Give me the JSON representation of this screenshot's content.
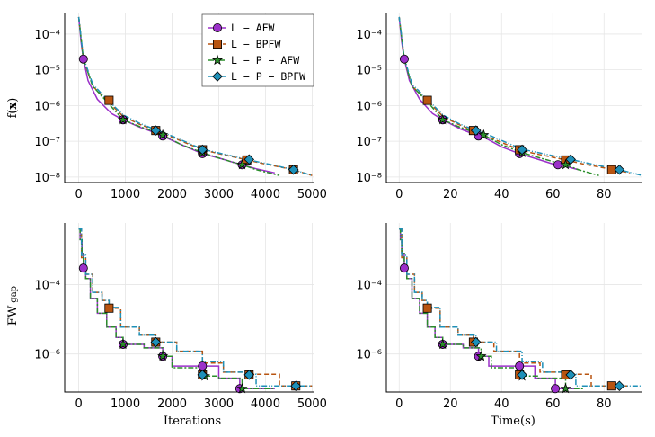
{
  "figure": {
    "ylabel_top": "f(x)",
    "ylabel_top_math_prefix": "f(",
    "ylabel_top_math_var": "x",
    "ylabel_top_math_suffix": ")",
    "ylabel_bottom": "FW gap",
    "ylabel_bottom_main": "FW",
    "ylabel_bottom_sub": "gap",
    "xlabel_iterations": "Iterations",
    "xlabel_time": "Time(s)"
  },
  "legend": [
    {
      "label": "L − AFW",
      "color": "#9B30C9",
      "marker": "circle",
      "dash": ""
    },
    {
      "label": "L − BPFW",
      "color": "#B85410",
      "marker": "square",
      "dash": "5,3"
    },
    {
      "label": "L − P − AFW",
      "color": "#2A8E2A",
      "marker": "star",
      "dash": "6,2,2,2"
    },
    {
      "label": "L − P − BPFW",
      "color": "#1E90B8",
      "marker": "diamond",
      "dash": "6,2,1,2,1,2"
    }
  ],
  "chart_data": [
    {
      "type": "line",
      "panel": "top-left",
      "xscale": "linear",
      "yscale": "log",
      "xlim": [
        -300,
        5050
      ],
      "ylim": [
        7e-09,
        0.0004
      ],
      "xticks": [
        0,
        1000,
        2000,
        3000,
        4000,
        5000
      ],
      "yticks": [
        {
          "v": 1e-08,
          "t": "10⁻⁸"
        },
        {
          "v": 1e-07,
          "t": "10⁻⁷"
        },
        {
          "v": 1e-06,
          "t": "10⁻⁶"
        },
        {
          "v": 1e-05,
          "t": "10⁻⁵"
        },
        {
          "v": 0.0001,
          "t": "10⁻⁴"
        }
      ],
      "series": [
        {
          "name": "L − AFW",
          "x": [
            0,
            50,
            100,
            200,
            400,
            700,
            950,
            1300,
            1650,
            1800,
            2200,
            2650,
            3000,
            3300,
            3500,
            3800,
            4200
          ],
          "y": [
            0.0003,
            6e-05,
            2e-05,
            5e-06,
            1.5e-06,
            6e-07,
            4e-07,
            2.5e-07,
            1.7e-07,
            1.4e-07,
            8e-08,
            4.5e-08,
            3.4e-08,
            2.6e-08,
            2.2e-08,
            1.7e-08,
            1.3e-08
          ],
          "markers_x": [
            100,
            950,
            1800,
            2650,
            3500
          ],
          "markers_y": [
            2e-05,
            4e-07,
            1.4e-07,
            4.5e-08,
            2.2e-08
          ]
        },
        {
          "name": "L − BPFW",
          "x": [
            0,
            100,
            300,
            600,
            950,
            1300,
            1650,
            2000,
            2650,
            3000,
            3600,
            4000,
            4600,
            5000
          ],
          "y": [
            0.0003,
            2e-05,
            3.5e-06,
            1.4e-06,
            5e-07,
            3e-07,
            2e-07,
            1.3e-07,
            5.8e-08,
            4.5e-08,
            3e-08,
            2.3e-08,
            1.6e-08,
            1.1e-08
          ],
          "markers_x": [
            650,
            1650,
            2650,
            3600,
            4600
          ],
          "markers_y": [
            1.4e-06,
            2e-07,
            5.8e-08,
            3e-08,
            1.6e-08
          ]
        },
        {
          "name": "L − P − AFW",
          "x": [
            0,
            100,
            300,
            600,
            950,
            1300,
            1650,
            1800,
            2200,
            2650,
            3000,
            3300,
            3500,
            3800,
            4300
          ],
          "y": [
            0.0003,
            2e-05,
            3.5e-06,
            1.3e-06,
            4e-07,
            2.6e-07,
            1.8e-07,
            1.5e-07,
            8e-08,
            4.8e-08,
            3.4e-08,
            2.6e-08,
            2.2e-08,
            1.6e-08,
            1.1e-08
          ],
          "markers_x": [
            950,
            1800,
            2650,
            3500
          ],
          "markers_y": [
            4e-07,
            1.5e-07,
            4.8e-08,
            2.2e-08
          ]
        },
        {
          "name": "L − P − BPFW",
          "x": [
            0,
            100,
            300,
            600,
            950,
            1300,
            1650,
            2000,
            2650,
            3000,
            3600,
            4000,
            4600,
            5000
          ],
          "y": [
            0.0003,
            2.2e-05,
            4e-06,
            1.5e-06,
            5.5e-07,
            3.2e-07,
            2.1e-07,
            1.4e-07,
            6e-08,
            4.7e-08,
            3.1e-08,
            2.4e-08,
            1.6e-08,
            1.1e-08
          ],
          "markers_x": [
            1650,
            2650,
            3650,
            4600
          ],
          "markers_y": [
            2e-07,
            5.8e-08,
            3.1e-08,
            1.6e-08
          ]
        }
      ]
    },
    {
      "type": "line",
      "panel": "top-right",
      "xscale": "linear",
      "yscale": "log",
      "xlim": [
        -5,
        95
      ],
      "ylim": [
        7e-09,
        0.0004
      ],
      "xticks": [
        0,
        20,
        40,
        60,
        80
      ],
      "yticks": [
        {
          "v": 1e-08,
          "t": "10⁻⁸"
        },
        {
          "v": 1e-07,
          "t": "10⁻⁷"
        },
        {
          "v": 1e-06,
          "t": "10⁻⁶"
        },
        {
          "v": 1e-05,
          "t": "10⁻⁵"
        },
        {
          "v": 0.0001,
          "t": "10⁻⁴"
        }
      ],
      "series": [
        {
          "name": "L − AFW",
          "x": [
            0,
            1,
            2,
            4,
            8,
            13,
            17,
            24,
            31,
            34,
            40,
            47,
            55,
            61,
            66,
            70
          ],
          "y": [
            0.0003,
            6e-05,
            2e-05,
            5e-06,
            1.5e-06,
            6e-07,
            4e-07,
            2.2e-07,
            1.4e-07,
            1.2e-07,
            7e-08,
            4.5e-08,
            3e-08,
            2.2e-08,
            1.9e-08,
            1.6e-08
          ],
          "markers_x": [
            2,
            17,
            31,
            47,
            62
          ],
          "markers_y": [
            2e-05,
            4e-07,
            1.4e-07,
            4.5e-08,
            2.2e-08
          ]
        },
        {
          "name": "L − BPFW",
          "x": [
            0,
            2,
            5,
            11,
            17,
            23,
            29,
            35,
            47,
            53,
            65,
            72,
            84,
            90
          ],
          "y": [
            0.0003,
            2e-05,
            3.5e-06,
            1.4e-06,
            5e-07,
            3e-07,
            2e-07,
            1.3e-07,
            5.8e-08,
            4.5e-08,
            3e-08,
            2.3e-08,
            1.6e-08,
            1.3e-08
          ],
          "markers_x": [
            11,
            29,
            47,
            65,
            83
          ],
          "markers_y": [
            1.4e-06,
            2e-07,
            5.8e-08,
            3e-08,
            1.6e-08
          ]
        },
        {
          "name": "L − P − AFW",
          "x": [
            0,
            2,
            5,
            11,
            17,
            23,
            29,
            33,
            40,
            48,
            55,
            61,
            65,
            70,
            78
          ],
          "y": [
            0.0003,
            2e-05,
            3.5e-06,
            1.3e-06,
            4e-07,
            2.6e-07,
            1.8e-07,
            1.5e-07,
            8e-08,
            4.8e-08,
            3.4e-08,
            2.6e-08,
            2.2e-08,
            1.6e-08,
            1.1e-08
          ],
          "markers_x": [
            17,
            33,
            48,
            65
          ],
          "markers_y": [
            4e-07,
            1.5e-07,
            4.8e-08,
            2.2e-08
          ]
        },
        {
          "name": "L − P − BPFW",
          "x": [
            0,
            2,
            5,
            11,
            17,
            23,
            29,
            36,
            48,
            55,
            67,
            74,
            86,
            95
          ],
          "y": [
            0.0003,
            2.2e-05,
            4e-06,
            1.5e-06,
            5.5e-07,
            3.2e-07,
            2.1e-07,
            1.4e-07,
            6e-08,
            4.7e-08,
            3.1e-08,
            2.4e-08,
            1.6e-08,
            1.1e-08
          ],
          "markers_x": [
            30,
            48,
            67,
            86
          ],
          "markers_y": [
            2e-07,
            5.8e-08,
            3.1e-08,
            1.6e-08
          ]
        }
      ]
    },
    {
      "type": "line",
      "panel": "bottom-left",
      "xscale": "linear",
      "yscale": "log",
      "xlim": [
        -300,
        5050
      ],
      "ylim": [
        8e-08,
        0.006
      ],
      "xticks": [
        0,
        1000,
        2000,
        3000,
        4000,
        5000
      ],
      "yticks": [
        {
          "v": 1e-06,
          "t": "10⁻⁶"
        },
        {
          "v": 0.0001,
          "t": "10⁻⁴"
        }
      ],
      "series": [
        {
          "name": "L − AFW",
          "step": true,
          "x": [
            0,
            30,
            70,
            100,
            150,
            250,
            400,
            600,
            800,
            950,
            1400,
            1800,
            2000,
            2650,
            3000,
            3450,
            4200
          ],
          "y": [
            0.004,
            0.002,
            0.0008,
            0.0003,
            0.00015,
            4e-05,
            1.5e-05,
            6e-06,
            3e-06,
            1.9e-06,
            1.5e-06,
            8.6e-07,
            4.5e-07,
            4.5e-07,
            2e-07,
            1e-07,
            1e-07
          ],
          "markers_x": [
            100,
            950,
            1800,
            2650,
            3450
          ],
          "markers_y": [
            0.0003,
            1.9e-06,
            8.6e-07,
            4.5e-07,
            1e-07
          ]
        },
        {
          "name": "L − BPFW",
          "step": true,
          "x": [
            0,
            60,
            150,
            300,
            500,
            650,
            900,
            1300,
            1650,
            2100,
            2650,
            3100,
            3650,
            4300,
            4650,
            5000
          ],
          "y": [
            0.004,
            0.0006,
            0.0002,
            6e-05,
            3.5e-05,
            2.1e-05,
            6e-06,
            3.5e-06,
            2.2e-06,
            1.2e-06,
            5.5e-07,
            3e-07,
            2.6e-07,
            1.2e-07,
            1.2e-07,
            1.2e-07
          ],
          "markers_x": [
            650,
            1650,
            2650,
            3650,
            4650
          ],
          "markers_y": [
            2.1e-05,
            2.2e-06,
            2.5e-07,
            2.5e-07,
            1.2e-07
          ]
        },
        {
          "name": "L − P − AFW",
          "step": true,
          "x": [
            0,
            30,
            70,
            100,
            150,
            250,
            400,
            600,
            800,
            950,
            1400,
            1800,
            2000,
            2700,
            3000,
            3500,
            4200
          ],
          "y": [
            0.004,
            0.002,
            0.0008,
            0.0003,
            0.00015,
            4e-05,
            1.5e-05,
            6e-06,
            3e-06,
            1.9e-06,
            1.5e-06,
            8.6e-07,
            4e-07,
            2.3e-07,
            2e-07,
            1e-07,
            1e-07
          ],
          "markers_x": [
            950,
            1800,
            2700,
            3500
          ],
          "markers_y": [
            1.9e-06,
            8.6e-07,
            2.3e-07,
            1e-07
          ]
        },
        {
          "name": "L − P − BPFW",
          "step": true,
          "x": [
            0,
            60,
            150,
            300,
            500,
            650,
            900,
            1300,
            1650,
            2100,
            2650,
            3100,
            3650,
            3800,
            4650,
            5000
          ],
          "y": [
            0.004,
            0.0007,
            0.0002,
            6e-05,
            3.5e-05,
            2.2e-05,
            6e-06,
            3.5e-06,
            2.2e-06,
            1.2e-06,
            6e-07,
            3e-07,
            2.6e-07,
            1.2e-07,
            1.2e-07,
            1.2e-07
          ],
          "markers_x": [
            1650,
            2650,
            3650,
            4650
          ],
          "markers_y": [
            2.2e-06,
            2.5e-07,
            2.5e-07,
            1.2e-07
          ]
        }
      ]
    },
    {
      "type": "line",
      "panel": "bottom-right",
      "xscale": "linear",
      "yscale": "log",
      "xlim": [
        -5,
        95
      ],
      "ylim": [
        8e-08,
        0.006
      ],
      "xticks": [
        0,
        20,
        40,
        60,
        80
      ],
      "yticks": [
        {
          "v": 1e-06,
          "t": "10⁻⁶"
        },
        {
          "v": 0.0001,
          "t": "10⁻⁴"
        }
      ],
      "series": [
        {
          "name": "L − AFW",
          "step": true,
          "x": [
            0,
            0.5,
            1,
            2,
            3,
            5,
            8,
            11,
            14,
            17,
            25,
            31,
            35,
            47,
            53,
            61,
            70
          ],
          "y": [
            0.004,
            0.002,
            0.0008,
            0.0003,
            0.00015,
            4e-05,
            1.5e-05,
            6e-06,
            3e-06,
            1.9e-06,
            1.5e-06,
            8.6e-07,
            4.5e-07,
            4.5e-07,
            2e-07,
            1e-07,
            1e-07
          ],
          "markers_x": [
            2,
            17,
            31,
            47,
            61
          ],
          "markers_y": [
            0.0003,
            1.9e-06,
            8.6e-07,
            4.5e-07,
            1e-07
          ]
        },
        {
          "name": "L − BPFW",
          "step": true,
          "x": [
            0,
            1,
            3,
            6,
            9,
            11,
            16,
            23,
            29,
            37,
            47,
            55,
            65,
            75,
            83,
            90
          ],
          "y": [
            0.004,
            0.0006,
            0.0002,
            6e-05,
            3.5e-05,
            2.1e-05,
            6e-06,
            3.5e-06,
            2.2e-06,
            1.2e-06,
            5.5e-07,
            3e-07,
            2.6e-07,
            1.2e-07,
            1.2e-07,
            1.2e-07
          ],
          "markers_x": [
            11,
            29,
            47,
            65,
            83
          ],
          "markers_y": [
            2.1e-05,
            2.2e-06,
            2.5e-07,
            2.5e-07,
            1.2e-07
          ]
        },
        {
          "name": "L − P − AFW",
          "step": true,
          "x": [
            0,
            0.5,
            1,
            2,
            3,
            5,
            8,
            11,
            14,
            17,
            25,
            32,
            36,
            48,
            54,
            65,
            72
          ],
          "y": [
            0.004,
            0.002,
            0.0008,
            0.0003,
            0.00015,
            4e-05,
            1.5e-05,
            6e-06,
            3e-06,
            1.9e-06,
            1.5e-06,
            8.6e-07,
            4e-07,
            2.3e-07,
            2e-07,
            1e-07,
            1e-07
          ],
          "markers_x": [
            17,
            32,
            48,
            65
          ],
          "markers_y": [
            1.9e-06,
            8.6e-07,
            2.3e-07,
            1e-07
          ]
        },
        {
          "name": "L − P − BPFW",
          "step": true,
          "x": [
            0,
            1,
            3,
            6,
            9,
            11,
            16,
            23,
            30,
            38,
            48,
            56,
            67,
            69,
            86,
            95
          ],
          "y": [
            0.004,
            0.0007,
            0.0002,
            6e-05,
            3.5e-05,
            2.2e-05,
            6e-06,
            3.5e-06,
            2.2e-06,
            1.2e-06,
            6e-07,
            3e-07,
            2.6e-07,
            1.2e-07,
            1.2e-07,
            1.2e-07
          ],
          "markers_x": [
            30,
            48,
            67,
            86
          ],
          "markers_y": [
            2.2e-06,
            2.5e-07,
            2.5e-07,
            1.2e-07
          ]
        }
      ]
    }
  ]
}
